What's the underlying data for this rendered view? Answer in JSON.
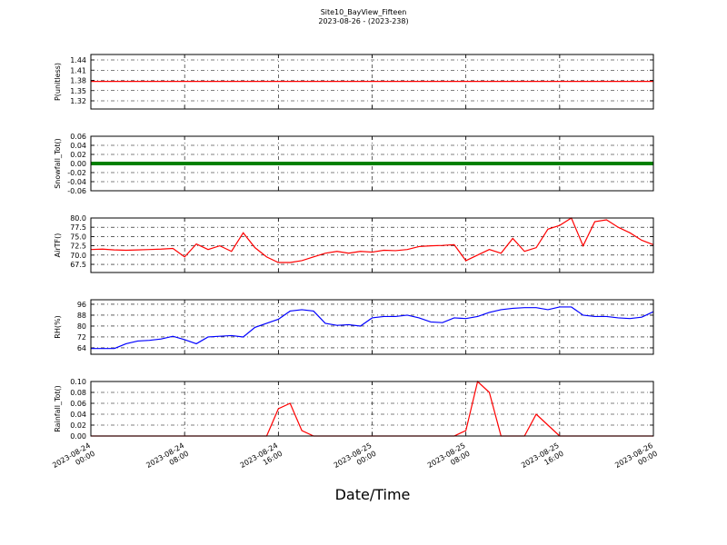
{
  "title": "Site10_BayView_Fifteen",
  "subtitle": "2023-08-26 - (2023-238)",
  "xlabel": "Date/Time",
  "xlim": [
    "2023-08-24 00:00",
    "2023-08-26 00:00"
  ],
  "xticks": [
    {
      "value": "2023-08-24 00:00",
      "label": "2023-08-24\n00:00"
    },
    {
      "value": "2023-08-24 08:00",
      "label": "2023-08-24\n08:00"
    },
    {
      "value": "2023-08-24 16:00",
      "label": "2023-08-24\n16:00"
    },
    {
      "value": "2023-08-25 00:00",
      "label": "2023-08-25\n00:00"
    },
    {
      "value": "2023-08-25 08:00",
      "label": "2023-08-25\n08:00"
    },
    {
      "value": "2023-08-25 16:00",
      "label": "2023-08-25\n16:00"
    },
    {
      "value": "2023-08-26 00:00",
      "label": "2023-08-26\n00:00"
    }
  ],
  "x": [
    "2023-08-24 00:00",
    "2023-08-24 01:00",
    "2023-08-24 02:00",
    "2023-08-24 03:00",
    "2023-08-24 04:00",
    "2023-08-24 05:00",
    "2023-08-24 06:00",
    "2023-08-24 07:00",
    "2023-08-24 08:00",
    "2023-08-24 09:00",
    "2023-08-24 10:00",
    "2023-08-24 11:00",
    "2023-08-24 12:00",
    "2023-08-24 13:00",
    "2023-08-24 14:00",
    "2023-08-24 15:00",
    "2023-08-24 16:00",
    "2023-08-24 17:00",
    "2023-08-24 18:00",
    "2023-08-24 19:00",
    "2023-08-24 20:00",
    "2023-08-24 21:00",
    "2023-08-24 22:00",
    "2023-08-24 23:00",
    "2023-08-25 00:00",
    "2023-08-25 01:00",
    "2023-08-25 02:00",
    "2023-08-25 03:00",
    "2023-08-25 04:00",
    "2023-08-25 05:00",
    "2023-08-25 06:00",
    "2023-08-25 07:00",
    "2023-08-25 08:00",
    "2023-08-25 09:00",
    "2023-08-25 10:00",
    "2023-08-25 11:00",
    "2023-08-25 12:00",
    "2023-08-25 13:00",
    "2023-08-25 14:00",
    "2023-08-25 15:00",
    "2023-08-25 16:00",
    "2023-08-25 17:00",
    "2023-08-25 18:00",
    "2023-08-25 19:00",
    "2023-08-25 20:00",
    "2023-08-25 21:00",
    "2023-08-25 22:00",
    "2023-08-25 23:00",
    "2023-08-26 00:00"
  ],
  "chart_data": [
    {
      "type": "line",
      "ylabel": "P(unitless)",
      "color": "#ff0000",
      "grid": true,
      "ylim": [
        1.296,
        1.456
      ],
      "yticks": [
        1.32,
        1.35,
        1.38,
        1.41,
        1.44
      ],
      "values": [
        1.377,
        1.377,
        1.377,
        1.377,
        1.377,
        1.377,
        1.377,
        1.377,
        1.377,
        1.377,
        1.377,
        1.377,
        1.377,
        1.377,
        1.377,
        1.377,
        1.377,
        1.377,
        1.377,
        1.377,
        1.377,
        1.377,
        1.377,
        1.377,
        1.377,
        1.377,
        1.377,
        1.377,
        1.377,
        1.377,
        1.377,
        1.377,
        1.377,
        1.377,
        1.377,
        1.377,
        1.377,
        1.377,
        1.377,
        1.377,
        1.377,
        1.377,
        1.377,
        1.377,
        1.377,
        1.377,
        1.377,
        1.377,
        1.377
      ]
    },
    {
      "type": "line",
      "ylabel": "Snowfall_Tot()",
      "color": "#008000",
      "line_width": 4,
      "grid": true,
      "ylim": [
        -0.06,
        0.06
      ],
      "yticks": [
        -0.06,
        -0.04,
        -0.02,
        {
          "value": 0,
          "label": "0.00"
        },
        0.02,
        0.04,
        0.06
      ],
      "values": [
        0,
        0,
        0,
        0,
        0,
        0,
        0,
        0,
        0,
        0,
        0,
        0,
        0,
        0,
        0,
        0,
        0,
        0,
        0,
        0,
        0,
        0,
        0,
        0,
        0,
        0,
        0,
        0,
        0,
        0,
        0,
        0,
        0,
        0,
        0,
        0,
        0,
        0,
        0,
        0,
        0,
        0,
        0,
        0,
        0,
        0,
        0,
        0,
        0
      ]
    },
    {
      "type": "line",
      "ylabel": "AirTF()",
      "color": "#ff0000",
      "grid": true,
      "ylim": [
        65.3,
        80
      ],
      "yticks": [
        {
          "value": 67.5,
          "label": "67.5"
        },
        {
          "value": 70,
          "label": "70.0"
        },
        72.5,
        {
          "value": 75,
          "label": "75.0"
        },
        77.5,
        {
          "value": 80,
          "label": "80.0"
        }
      ],
      "values": [
        71.5,
        71.6,
        71.4,
        71.3,
        71.4,
        71.5,
        71.6,
        71.8,
        69.5,
        73,
        71.5,
        72.5,
        71,
        76,
        72,
        69.5,
        68,
        68,
        68.5,
        69.5,
        70.5,
        71,
        70.5,
        71,
        70.8,
        71.3,
        71.2,
        71.5,
        72.3,
        72.5,
        72.6,
        72.8,
        68.5,
        70,
        71.5,
        70.5,
        74.5,
        71,
        72,
        77,
        78,
        80,
        72.5,
        79,
        79.5,
        77.5,
        76,
        74,
        72.8
      ]
    },
    {
      "type": "line",
      "ylabel": "RH(%)",
      "color": "#0000ff",
      "grid": true,
      "ylim": [
        59.3,
        99.3
      ],
      "yticks": [
        64,
        72,
        80,
        88,
        96
      ],
      "values": [
        63.5,
        63.5,
        63.5,
        67,
        69,
        69.5,
        70.5,
        72.5,
        70,
        67,
        72,
        72.5,
        73,
        72,
        79,
        82,
        85,
        91,
        92,
        91,
        82,
        80.5,
        81,
        80,
        86,
        87,
        87,
        88,
        86,
        83,
        82.5,
        86,
        85.5,
        87,
        90,
        92,
        93,
        93.5,
        93.5,
        92,
        94,
        94,
        88,
        87,
        87,
        86,
        85.5,
        86.5,
        90.5
      ]
    },
    {
      "type": "line",
      "ylabel": "Rainfall_Tot()",
      "color": "#ff0000",
      "grid": true,
      "ylim": [
        0,
        0.1
      ],
      "yticks": [
        {
          "value": 0,
          "label": "0.00"
        },
        0.02,
        0.04,
        0.06,
        0.08,
        {
          "value": 0.1,
          "label": "0.10"
        }
      ],
      "values": [
        0,
        0,
        0,
        0,
        0,
        0,
        0,
        0,
        0,
        0,
        0,
        0,
        0,
        0,
        0,
        0,
        0.05,
        0.06,
        0.01,
        0,
        0,
        0,
        0,
        0,
        0,
        0,
        0,
        0,
        0,
        0,
        0,
        0,
        0.01,
        0.1,
        0.08,
        0,
        0,
        0,
        0.04,
        0.02,
        0,
        0,
        0,
        0,
        0,
        0,
        0,
        0,
        0
      ]
    }
  ]
}
